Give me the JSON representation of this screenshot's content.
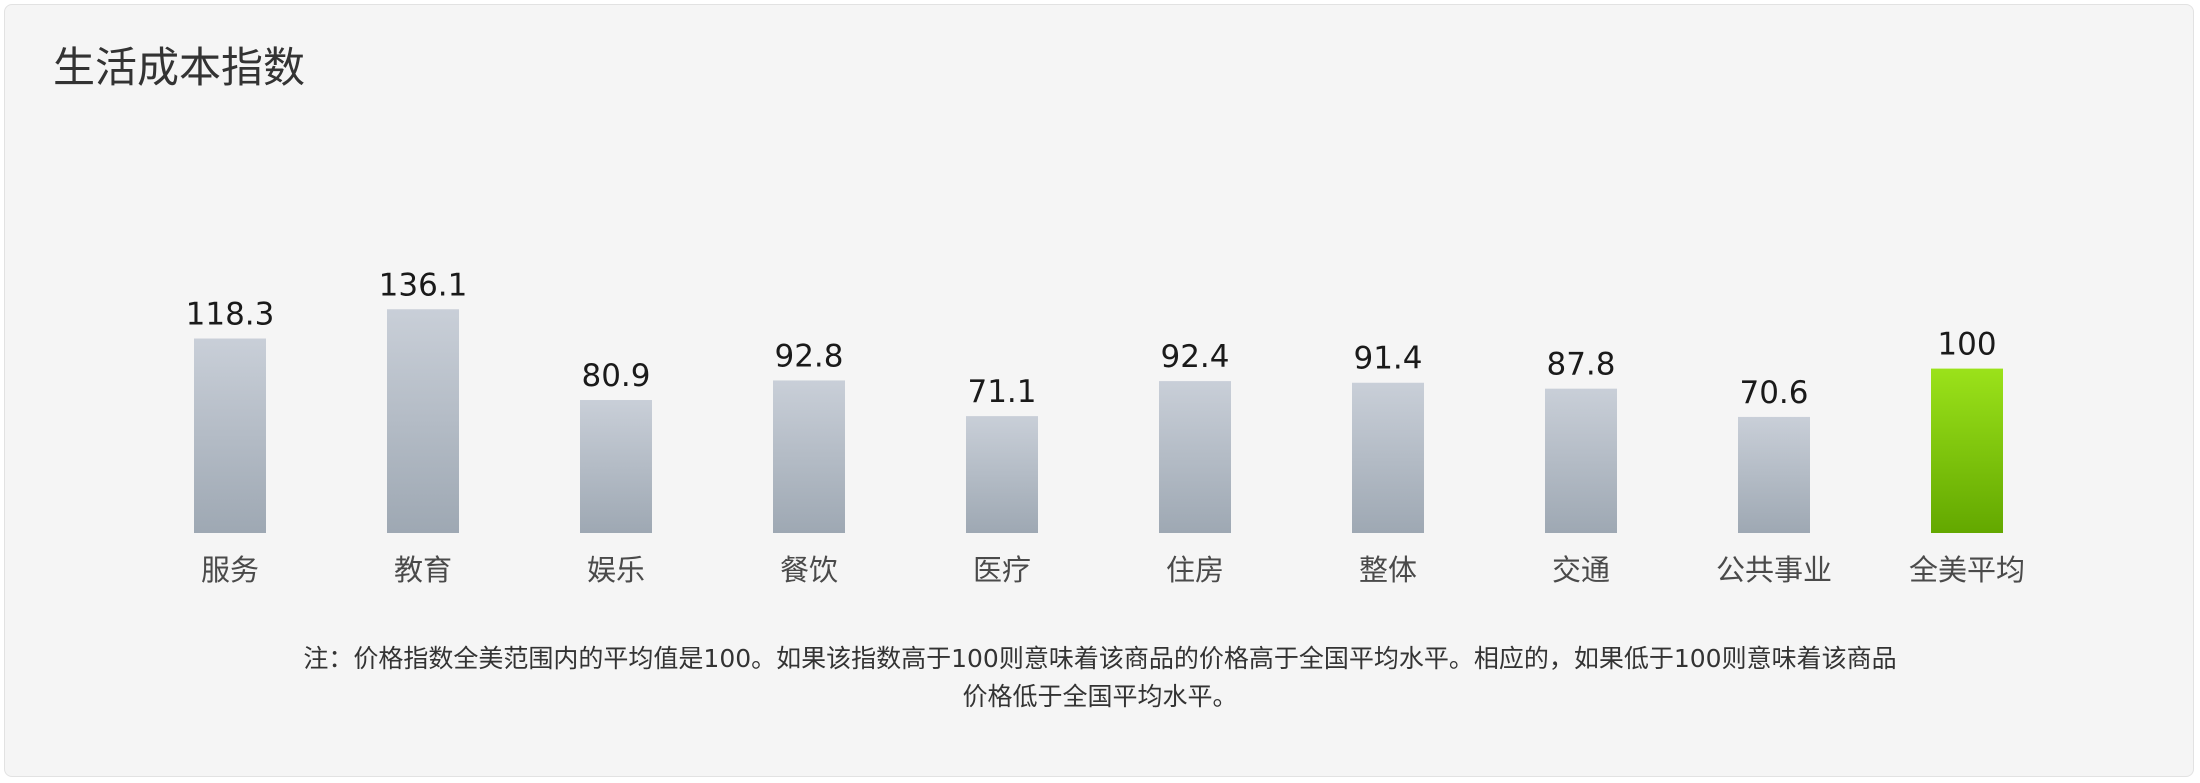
{
  "chart_data": {
    "type": "bar",
    "title": "生活成本指数",
    "xlabel": "",
    "ylabel": "",
    "ylim": [
      0,
      150
    ],
    "grid": false,
    "legend": "none",
    "categories": [
      "服务",
      "教育",
      "娱乐",
      "餐饮",
      "医疗",
      "住房",
      "整体",
      "交通",
      "公共事业",
      "全美平均"
    ],
    "values": [
      118.3,
      136.1,
      80.9,
      92.8,
      71.1,
      92.4,
      91.4,
      87.8,
      70.6,
      100
    ],
    "value_labels": [
      "118.3",
      "136.1",
      "80.9",
      "92.8",
      "71.1",
      "92.4",
      "91.4",
      "87.8",
      "70.6",
      "100"
    ],
    "highlight_index": 9,
    "colors": {
      "bar_top": "#c9cfd8",
      "bar_bottom": "#9ea8b3",
      "highlight_top": "#9be21a",
      "highlight_bottom": "#63a800"
    }
  },
  "note": {
    "line1": "注：价格指数全美范围内的平均值是100。如果该指数高于100则意味着该商品的价格高于全国平均水平。相应的，如果低于100则意味着该商品",
    "line2": "价格低于全国平均水平。"
  }
}
